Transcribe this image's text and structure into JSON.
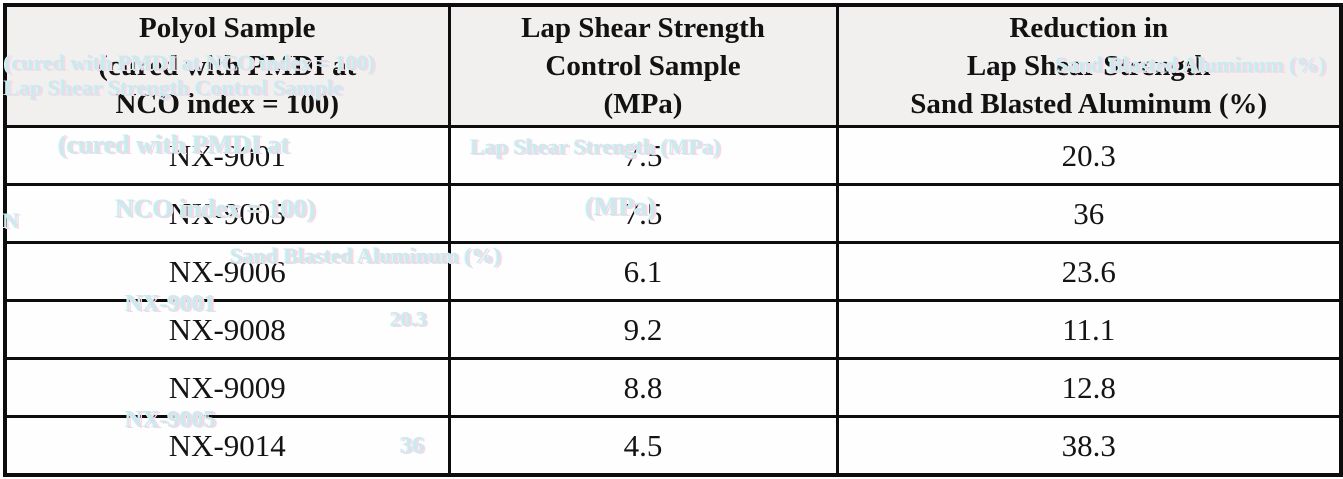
{
  "table": {
    "headers": [
      {
        "lines": [
          "Polyol Sample",
          "(cured with PMDI at",
          "NCO index = 100)"
        ]
      },
      {
        "lines": [
          "Lap Shear Strength",
          "Control Sample",
          "(MPa)"
        ]
      },
      {
        "lines": [
          "Reduction in",
          "Lap Shear Strength",
          "Sand Blasted Aluminum (%)"
        ]
      }
    ],
    "rows": [
      {
        "sample": "NX-9001",
        "control_mpa": "7.5",
        "reduction_pct": "20.3"
      },
      {
        "sample": "NX-9005",
        "control_mpa": "7.5",
        "reduction_pct": "36"
      },
      {
        "sample": "NX-9006",
        "control_mpa": "6.1",
        "reduction_pct": "23.6"
      },
      {
        "sample": "NX-9008",
        "control_mpa": "9.2",
        "reduction_pct": "11.1"
      },
      {
        "sample": "NX-9009",
        "control_mpa": "8.8",
        "reduction_pct": "12.8"
      },
      {
        "sample": "NX-9014",
        "control_mpa": "4.5",
        "reduction_pct": "38.3"
      }
    ]
  },
  "colors": {
    "header_bg": "#f1f0ef",
    "body_bg": "#ffffff",
    "border": "#0d0d0d",
    "text": "#141414",
    "ghost_cyan": "#c9ebee",
    "ghost_pink": "#f8d7e6"
  },
  "artifacts": {
    "fragments": [
      "(cured with PMDI at NCO index = 100)",
      "Lap Shear Strength Control Sample",
      "Sand Blasted Aluminum (%)",
      "(cured with PMDI at",
      "Lap Shear Strength (MPa)",
      "NCO index = 100)",
      "(MPa)",
      "Sand Blasted Aluminum (%)",
      "NX-9001",
      "20.3",
      "NX-9005",
      "36",
      "N"
    ]
  }
}
